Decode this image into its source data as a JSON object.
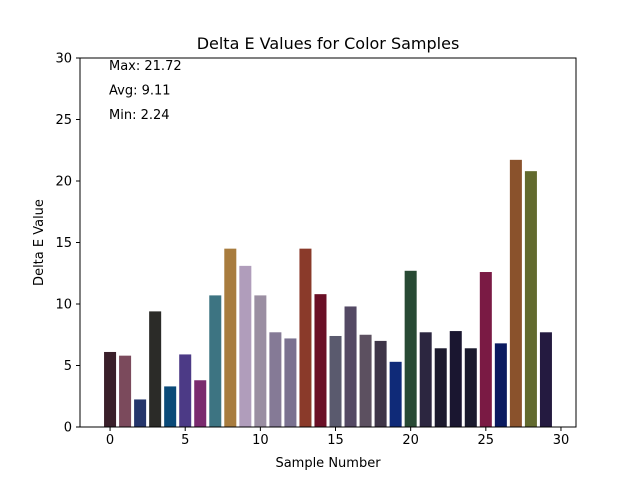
{
  "chart_data": {
    "type": "bar",
    "title": "Delta E Values for Color Samples",
    "xlabel": "Sample Number",
    "ylabel": "Delta E Value",
    "xlim": [
      -2,
      31
    ],
    "ylim": [
      0,
      30
    ],
    "xticks": [
      0,
      5,
      10,
      15,
      20,
      25,
      30
    ],
    "yticks": [
      0,
      5,
      10,
      15,
      20,
      25,
      30
    ],
    "grid": false,
    "x": [
      0,
      1,
      2,
      3,
      4,
      5,
      6,
      7,
      8,
      9,
      10,
      11,
      12,
      13,
      14,
      15,
      16,
      17,
      18,
      19,
      20,
      21,
      22,
      23,
      24,
      25,
      26,
      27,
      28,
      29
    ],
    "values": [
      6.1,
      5.8,
      2.24,
      9.4,
      3.3,
      5.9,
      3.8,
      10.7,
      14.5,
      13.1,
      10.7,
      7.7,
      7.2,
      14.5,
      10.8,
      7.4,
      9.8,
      7.5,
      7.0,
      5.3,
      12.7,
      7.7,
      6.4,
      7.8,
      6.4,
      12.6,
      6.8,
      21.72,
      20.8,
      7.7
    ],
    "colors": [
      "#3a1f2a",
      "#7b4a5c",
      "#25356b",
      "#2b2b28",
      "#0a4a78",
      "#4c3a86",
      "#7a2a6e",
      "#3d7482",
      "#a87c3e",
      "#b09dbb",
      "#9a8ea2",
      "#857a96",
      "#7a7190",
      "#8a3a2a",
      "#6a0f26",
      "#5a5a6e",
      "#544964",
      "#5c5060",
      "#3e3548",
      "#0f2a78",
      "#284a34",
      "#2c2640",
      "#1c1a2e",
      "#1a1630",
      "#1a1a2e",
      "#7a1a44",
      "#0a1a60",
      "#8a522c",
      "#626a2e",
      "#241a40"
    ],
    "annotations": [
      "Max: 21.72",
      "Avg: 9.11",
      "Min: 2.24"
    ]
  }
}
